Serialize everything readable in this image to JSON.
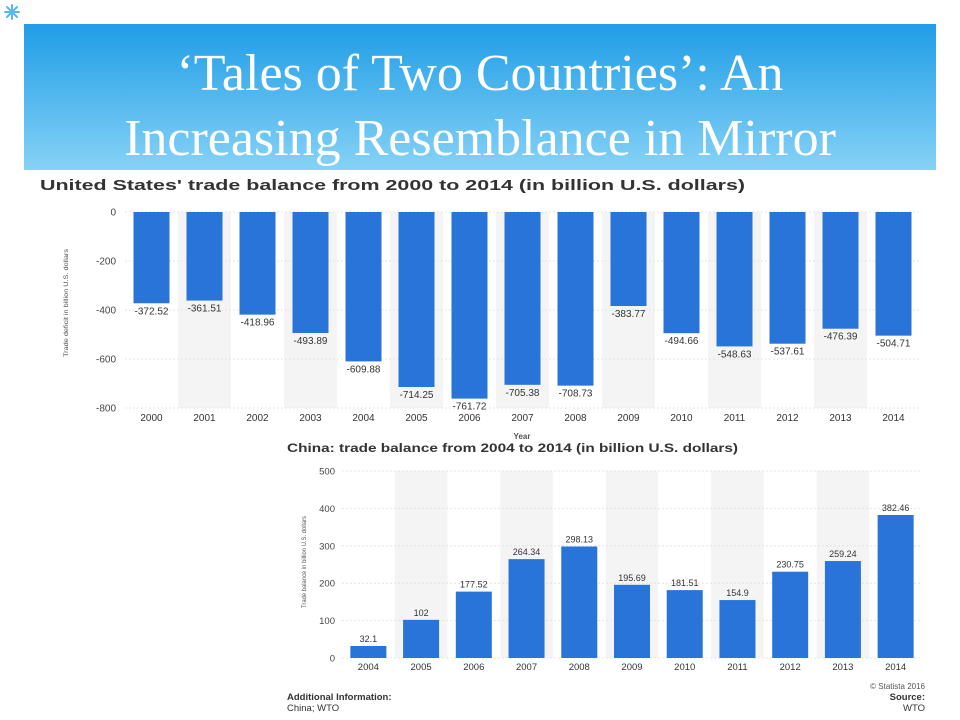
{
  "slide": {
    "title_line1": "‘Tales of Two Countries’: An",
    "title_line2": "Increasing Resemblance in Mirror",
    "corner_icon": "asterisk-icon"
  },
  "colors": {
    "banner_top": "#1f9de6",
    "banner_bottom": "#86d2f6",
    "title_text": "#ffffff",
    "bar": "#2874d8",
    "corner_icon": "#5ab8ee"
  },
  "chart_data": [
    {
      "type": "bar",
      "title": "United States' trade balance from 2000 to 2014 (in billion U.S. dollars)",
      "xlabel": "Year",
      "ylabel": "Trade deficit in billion U.S. dollars",
      "categories": [
        "2000",
        "2001",
        "2002",
        "2003",
        "2004",
        "2005",
        "2006",
        "2007",
        "2008",
        "2009",
        "2010",
        "2011",
        "2012",
        "2013",
        "2014"
      ],
      "values": [
        -372.52,
        -361.51,
        -418.96,
        -493.89,
        -609.88,
        -714.25,
        -761.72,
        -705.38,
        -708.73,
        -383.77,
        -494.66,
        -548.63,
        -537.61,
        -476.39,
        -504.71
      ],
      "yticks": [
        0,
        -200,
        -400,
        -600,
        -800
      ],
      "ylim": [
        -800,
        0
      ],
      "grid": true
    },
    {
      "type": "bar",
      "title": "China: trade balance from 2004 to 2014 (in billion U.S. dollars)",
      "ylabel": "Trade balance in billion U.S. dollars",
      "categories": [
        "2004",
        "2005",
        "2006",
        "2007",
        "2008",
        "2009",
        "2010",
        "2011",
        "2012",
        "2013",
        "2014"
      ],
      "values": [
        32.1,
        102,
        177.52,
        264.34,
        298.13,
        195.69,
        181.51,
        154.9,
        230.75,
        259.24,
        382.46
      ],
      "yticks": [
        0,
        100,
        200,
        300,
        400,
        500
      ],
      "ylim": [
        0,
        500
      ],
      "grid": true
    }
  ],
  "footer": {
    "additional_info_label": "Additional Information:",
    "additional_info_value": "China; WTO",
    "copyright": "© Statista 2016",
    "source_label": "Source:",
    "source_value": "WTO"
  }
}
